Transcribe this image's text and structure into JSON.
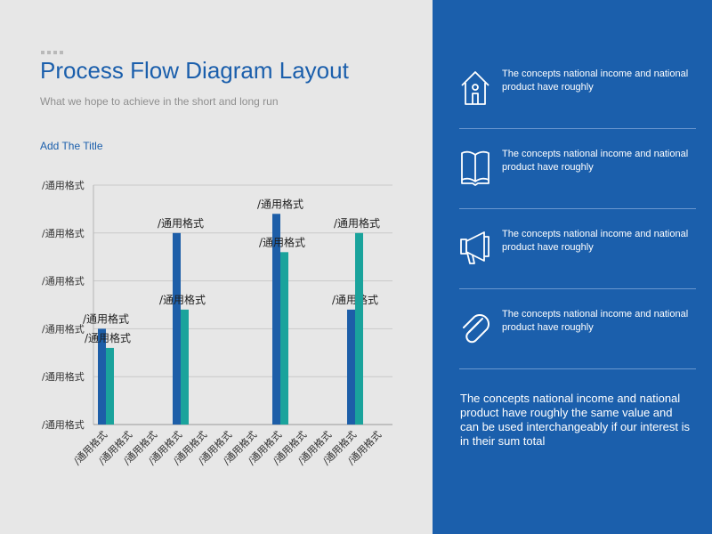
{
  "header": {
    "title": "Process Flow Diagram Layout",
    "subtitle": "What we hope to achieve in the short and long run",
    "chart_heading": "Add The Title"
  },
  "colors": {
    "accent": "#1b5fac",
    "series_a": "#1d5ea8",
    "series_b": "#1aa39c",
    "panel": "#1b5fac",
    "background": "#e7e7e7"
  },
  "chart_data": {
    "type": "bar",
    "title": "",
    "xlabel": "",
    "ylabel": "",
    "categories": [
      "/通用格式",
      "/通用格式",
      "/通用格式",
      "/通用格式",
      "/通用格式",
      "/通用格式",
      "/通用格式",
      "/通用格式",
      "/通用格式",
      "/通用格式",
      "/通用格式",
      "/通用格式"
    ],
    "y_tick_labels": [
      "/通用格式",
      "/通用格式",
      "/通用格式",
      "/通用格式",
      "/通用格式",
      "/通用格式"
    ],
    "ylim": [
      0,
      5
    ],
    "grid": true,
    "series": [
      {
        "values": [
          2,
          null,
          null,
          4,
          null,
          null,
          null,
          4.4,
          null,
          null,
          2.4,
          null
        ],
        "data_labels": [
          "/通用格式",
          null,
          null,
          "/通用格式",
          null,
          null,
          null,
          "/通用格式",
          null,
          null,
          "/通用格式",
          null
        ]
      },
      {
        "values": [
          1.6,
          null,
          null,
          2.4,
          null,
          null,
          null,
          3.6,
          null,
          null,
          4,
          null
        ],
        "data_labels": [
          "/通用格式",
          null,
          null,
          "/通用格式",
          null,
          null,
          null,
          "/通用格式",
          null,
          null,
          "/通用格式",
          null
        ]
      }
    ]
  },
  "sidebar": {
    "items": [
      {
        "icon": "house-icon",
        "text": "The concepts national income and national product have roughly"
      },
      {
        "icon": "book-icon",
        "text": "The concepts national income and national product have roughly"
      },
      {
        "icon": "megaphone-icon",
        "text": "The concepts national income and national product have roughly"
      },
      {
        "icon": "paperclip-icon",
        "text": "The concepts national income and national product have roughly"
      }
    ],
    "summary": "The concepts national income and national product have roughly the same value and can be used interchangeably if our interest is in their sum total"
  }
}
